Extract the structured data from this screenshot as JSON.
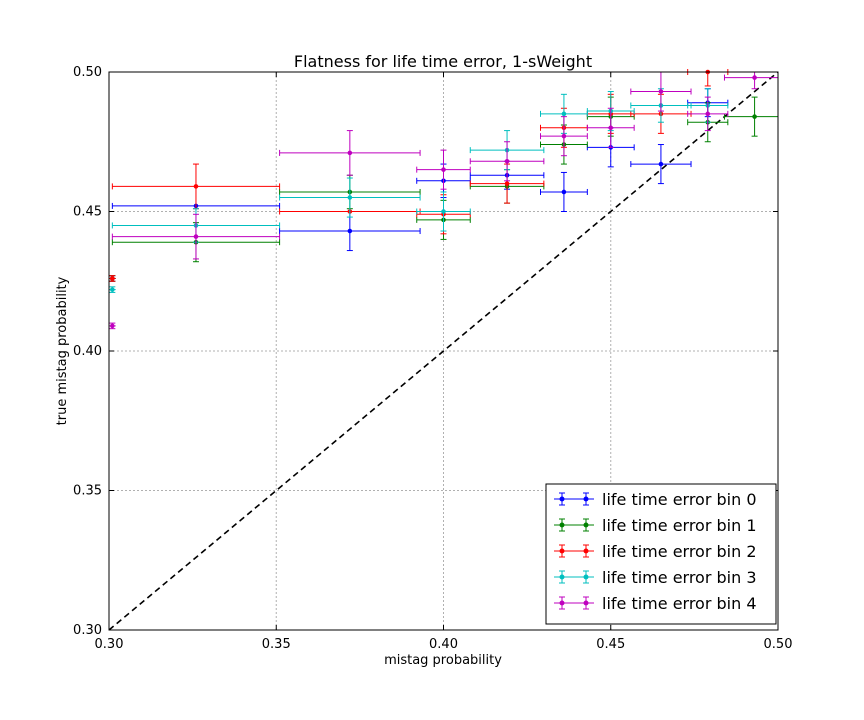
{
  "chart_data": {
    "type": "scatter",
    "title": "Flatness for life time error, 1-sWeight",
    "xlabel": "mistag probability",
    "ylabel": "true mistag probability",
    "xlim": [
      0.3,
      0.5
    ],
    "ylim": [
      0.3,
      0.5
    ],
    "x_ticks": [
      "0.30",
      "0.35",
      "0.40",
      "0.45",
      "0.50"
    ],
    "y_ticks": [
      "0.30",
      "0.35",
      "0.40",
      "0.45",
      "0.50"
    ],
    "grid": true,
    "legend_position": "lower-right",
    "reference_line": {
      "style": "dashed",
      "color": "#000000",
      "x": [
        0.3,
        0.5
      ],
      "y": [
        0.3,
        0.5
      ]
    },
    "series": [
      {
        "name": "life time error bin 0",
        "color": "#0000ff",
        "points": [
          {
            "x": 0.301,
            "y": 0.426,
            "xerr": 0.001,
            "yerr": 0.001
          },
          {
            "x": 0.326,
            "y": 0.452,
            "xerr": 0.025,
            "yerr": 0.0
          },
          {
            "x": 0.372,
            "y": 0.443,
            "xerr": 0.021,
            "yerr": 0.007
          },
          {
            "x": 0.4,
            "y": 0.461,
            "xerr": 0.008,
            "yerr": 0.006
          },
          {
            "x": 0.419,
            "y": 0.463,
            "xerr": 0.011,
            "yerr": 0.005
          },
          {
            "x": 0.436,
            "y": 0.457,
            "xerr": 0.007,
            "yerr": 0.007
          },
          {
            "x": 0.45,
            "y": 0.473,
            "xerr": 0.007,
            "yerr": 0.007
          },
          {
            "x": 0.465,
            "y": 0.467,
            "xerr": 0.009,
            "yerr": 0.007
          },
          {
            "x": 0.479,
            "y": 0.489,
            "xerr": 0.006,
            "yerr": 0.005
          }
        ]
      },
      {
        "name": "life time error bin 1",
        "color": "#008000",
        "points": [
          {
            "x": 0.301,
            "y": 0.426,
            "xerr": 0.001,
            "yerr": 0.001
          },
          {
            "x": 0.326,
            "y": 0.439,
            "xerr": 0.025,
            "yerr": 0.007
          },
          {
            "x": 0.372,
            "y": 0.457,
            "xerr": 0.021,
            "yerr": 0.006
          },
          {
            "x": 0.4,
            "y": 0.447,
            "xerr": 0.008,
            "yerr": 0.007
          },
          {
            "x": 0.419,
            "y": 0.459,
            "xerr": 0.011,
            "yerr": 0.006
          },
          {
            "x": 0.436,
            "y": 0.474,
            "xerr": 0.007,
            "yerr": 0.007
          },
          {
            "x": 0.45,
            "y": 0.484,
            "xerr": 0.007,
            "yerr": 0.007
          },
          {
            "x": 0.479,
            "y": 0.482,
            "xerr": 0.006,
            "yerr": 0.007
          },
          {
            "x": 0.493,
            "y": 0.484,
            "xerr": 0.009,
            "yerr": 0.007
          }
        ]
      },
      {
        "name": "life time error bin 2",
        "color": "#ff0000",
        "points": [
          {
            "x": 0.301,
            "y": 0.426,
            "xerr": 0.001,
            "yerr": 0.001
          },
          {
            "x": 0.326,
            "y": 0.459,
            "xerr": 0.025,
            "yerr": 0.008
          },
          {
            "x": 0.372,
            "y": 0.45,
            "xerr": 0.021,
            "yerr": 0.0
          },
          {
            "x": 0.4,
            "y": 0.449,
            "xerr": 0.008,
            "yerr": 0.007
          },
          {
            "x": 0.419,
            "y": 0.46,
            "xerr": 0.011,
            "yerr": 0.007
          },
          {
            "x": 0.436,
            "y": 0.48,
            "xerr": 0.007,
            "yerr": 0.007
          },
          {
            "x": 0.45,
            "y": 0.485,
            "xerr": 0.007,
            "yerr": 0.007
          },
          {
            "x": 0.465,
            "y": 0.485,
            "xerr": 0.009,
            "yerr": 0.007
          },
          {
            "x": 0.479,
            "y": 0.5,
            "xerr": 0.006,
            "yerr": 0.005
          }
        ]
      },
      {
        "name": "life time error bin 3",
        "color": "#00bfbf",
        "points": [
          {
            "x": 0.301,
            "y": 0.422,
            "xerr": 0.001,
            "yerr": 0.001
          },
          {
            "x": 0.326,
            "y": 0.445,
            "xerr": 0.025,
            "yerr": 0.006
          },
          {
            "x": 0.372,
            "y": 0.455,
            "xerr": 0.021,
            "yerr": 0.007
          },
          {
            "x": 0.4,
            "y": 0.45,
            "xerr": 0.008,
            "yerr": 0.007
          },
          {
            "x": 0.419,
            "y": 0.472,
            "xerr": 0.011,
            "yerr": 0.007
          },
          {
            "x": 0.436,
            "y": 0.485,
            "xerr": 0.007,
            "yerr": 0.007
          },
          {
            "x": 0.45,
            "y": 0.486,
            "xerr": 0.007,
            "yerr": 0.007
          },
          {
            "x": 0.465,
            "y": 0.488,
            "xerr": 0.009,
            "yerr": 0.006
          },
          {
            "x": 0.479,
            "y": 0.488,
            "xerr": 0.006,
            "yerr": 0.006
          }
        ]
      },
      {
        "name": "life time error bin 4",
        "color": "#bf00bf",
        "points": [
          {
            "x": 0.301,
            "y": 0.409,
            "xerr": 0.001,
            "yerr": 0.001
          },
          {
            "x": 0.326,
            "y": 0.441,
            "xerr": 0.025,
            "yerr": 0.008
          },
          {
            "x": 0.372,
            "y": 0.471,
            "xerr": 0.021,
            "yerr": 0.008
          },
          {
            "x": 0.4,
            "y": 0.465,
            "xerr": 0.008,
            "yerr": 0.007
          },
          {
            "x": 0.419,
            "y": 0.468,
            "xerr": 0.011,
            "yerr": 0.007
          },
          {
            "x": 0.436,
            "y": 0.477,
            "xerr": 0.007,
            "yerr": 0.007
          },
          {
            "x": 0.45,
            "y": 0.48,
            "xerr": 0.007,
            "yerr": 0.007
          },
          {
            "x": 0.465,
            "y": 0.493,
            "xerr": 0.009,
            "yerr": 0.007
          },
          {
            "x": 0.479,
            "y": 0.485,
            "xerr": 0.006,
            "yerr": 0.006
          },
          {
            "x": 0.493,
            "y": 0.498,
            "xerr": 0.009,
            "yerr": 0.004
          }
        ]
      }
    ]
  }
}
